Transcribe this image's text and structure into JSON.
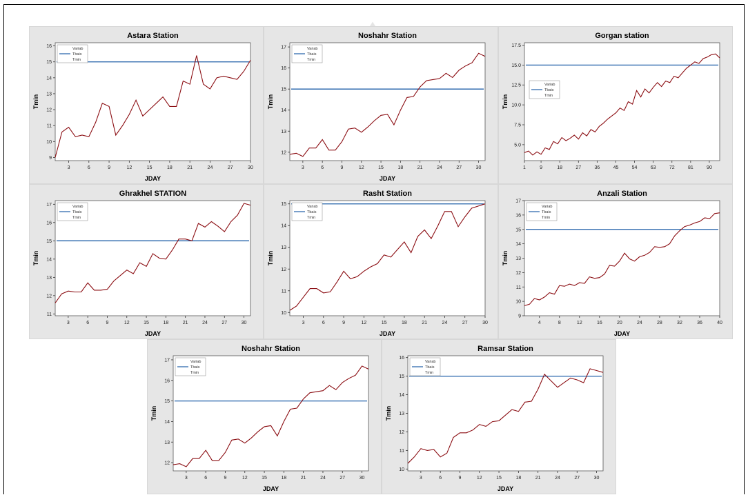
{
  "colors": {
    "series_line": "#8b0d12",
    "threshold_line": "#1f5fa8",
    "panel_bg": "#e6e6e6",
    "plot_bg": "#ffffff"
  },
  "legend": {
    "title": "Variab",
    "entries": [
      "Tbais",
      "Tmin"
    ]
  },
  "chart_data": [
    {
      "type": "line",
      "title": "Astara Station",
      "xlabel": "JDAY",
      "ylabel": "Tmin",
      "xlim": [
        1,
        30
      ],
      "ylim": [
        8.8,
        16.2
      ],
      "xticks": [
        3,
        6,
        9,
        12,
        15,
        18,
        21,
        24,
        27,
        30
      ],
      "yticks": [
        9,
        10,
        11,
        12,
        13,
        14,
        15,
        16
      ],
      "threshold": 15,
      "series": [
        {
          "name": "Tmin",
          "x": [
            1,
            2,
            3,
            4,
            5,
            6,
            7,
            8,
            9,
            10,
            11,
            12,
            13,
            14,
            15,
            16,
            17,
            18,
            19,
            20,
            21,
            22,
            23,
            24,
            25,
            26,
            27,
            28,
            29,
            30
          ],
          "values": [
            9.0,
            10.6,
            10.9,
            10.3,
            10.4,
            10.3,
            11.2,
            12.4,
            12.2,
            10.4,
            11.0,
            11.7,
            12.6,
            11.6,
            12.0,
            12.4,
            12.8,
            12.2,
            12.2,
            13.8,
            13.6,
            15.4,
            13.6,
            13.3,
            14.0,
            14.1,
            14.0,
            13.9,
            14.4,
            15.1
          ]
        }
      ]
    },
    {
      "type": "line",
      "title": "Noshahr Station",
      "xlabel": "JDAY",
      "ylabel": "Tmin",
      "xlim": [
        1,
        31
      ],
      "ylim": [
        11.6,
        17.2
      ],
      "xticks": [
        3,
        6,
        9,
        12,
        15,
        18,
        21,
        24,
        27,
        30
      ],
      "yticks": [
        12,
        13,
        14,
        15,
        16,
        17
      ],
      "threshold": 15,
      "series": [
        {
          "name": "Tmin",
          "x": [
            1,
            2,
            3,
            4,
            5,
            6,
            7,
            8,
            9,
            10,
            11,
            12,
            13,
            14,
            15,
            16,
            17,
            18,
            19,
            20,
            21,
            22,
            23,
            24,
            25,
            26,
            27,
            28,
            29,
            30,
            31
          ],
          "values": [
            11.9,
            11.95,
            11.8,
            12.2,
            12.2,
            12.6,
            12.1,
            12.1,
            12.5,
            13.1,
            13.15,
            12.95,
            13.2,
            13.5,
            13.75,
            13.8,
            13.3,
            14.0,
            14.6,
            14.65,
            15.1,
            15.4,
            15.45,
            15.5,
            15.75,
            15.55,
            15.9,
            16.1,
            16.25,
            16.7,
            16.55
          ]
        }
      ]
    },
    {
      "type": "line",
      "title": "Gorgan station",
      "xlabel": "",
      "ylabel": "Tmin",
      "xlim": [
        1,
        95
      ],
      "ylim": [
        3.0,
        17.8
      ],
      "xticks": [
        1,
        9,
        18,
        27,
        36,
        45,
        54,
        63,
        72,
        81,
        90
      ],
      "yticks": [
        5.0,
        7.5,
        10.0,
        12.5,
        15.0,
        17.5
      ],
      "threshold": 15,
      "series": [
        {
          "name": "Tmin",
          "x": [
            1,
            3,
            5,
            7,
            9,
            11,
            13,
            15,
            17,
            19,
            21,
            23,
            25,
            27,
            29,
            31,
            33,
            35,
            37,
            39,
            41,
            43,
            45,
            47,
            49,
            51,
            53,
            55,
            57,
            59,
            61,
            63,
            65,
            67,
            69,
            71,
            73,
            75,
            77,
            79,
            81,
            83,
            85,
            87,
            89,
            91,
            93,
            95
          ],
          "values": [
            4.0,
            4.2,
            3.7,
            4.1,
            3.8,
            4.6,
            4.4,
            5.4,
            5.1,
            5.9,
            5.5,
            5.8,
            6.2,
            5.7,
            6.5,
            6.1,
            6.9,
            6.6,
            7.3,
            7.7,
            8.2,
            8.6,
            9.0,
            9.6,
            9.3,
            10.4,
            10.1,
            11.8,
            11.0,
            12.0,
            11.5,
            12.2,
            12.8,
            12.3,
            13.0,
            12.8,
            13.6,
            13.4,
            14.0,
            14.6,
            15.0,
            15.4,
            15.2,
            15.8,
            16.0,
            16.3,
            16.4,
            15.9
          ]
        }
      ]
    },
    {
      "type": "line",
      "title": "Ghrakhel STATION",
      "xlabel": "JDAY",
      "ylabel": "Tmin",
      "xlim": [
        1,
        31
      ],
      "ylim": [
        10.9,
        17.2
      ],
      "xticks": [
        3,
        6,
        9,
        12,
        15,
        18,
        21,
        24,
        27,
        30
      ],
      "yticks": [
        11,
        12,
        13,
        14,
        15,
        16,
        17
      ],
      "threshold": 15,
      "series": [
        {
          "name": "Tmin",
          "x": [
            1,
            2,
            3,
            4,
            5,
            6,
            7,
            8,
            9,
            10,
            11,
            12,
            13,
            14,
            15,
            16,
            17,
            18,
            19,
            20,
            21,
            22,
            23,
            24,
            25,
            26,
            27,
            28,
            29,
            30,
            31
          ],
          "values": [
            11.6,
            12.1,
            12.25,
            12.2,
            12.2,
            12.7,
            12.3,
            12.3,
            12.35,
            12.8,
            13.1,
            13.4,
            13.2,
            13.8,
            13.6,
            14.3,
            14.05,
            14.0,
            14.5,
            15.1,
            15.1,
            15.0,
            15.95,
            15.75,
            16.05,
            15.8,
            15.5,
            16.05,
            16.4,
            17.05,
            16.95
          ]
        }
      ]
    },
    {
      "type": "line",
      "title": "Rasht Station",
      "xlabel": "JDAY",
      "ylabel": "Tmin",
      "xlim": [
        1,
        30
      ],
      "ylim": [
        9.85,
        15.15
      ],
      "xticks": [
        3,
        6,
        9,
        12,
        15,
        18,
        21,
        24,
        27,
        30
      ],
      "yticks": [
        10,
        11,
        12,
        13,
        14,
        15
      ],
      "threshold": 15,
      "series": [
        {
          "name": "Tmin",
          "x": [
            1,
            2,
            3,
            4,
            5,
            6,
            7,
            8,
            9,
            10,
            11,
            12,
            13,
            14,
            15,
            16,
            17,
            18,
            19,
            20,
            21,
            22,
            23,
            24,
            25,
            26,
            27,
            28,
            29,
            30
          ],
          "values": [
            10.1,
            10.3,
            10.7,
            11.1,
            11.1,
            10.9,
            10.95,
            11.4,
            11.9,
            11.55,
            11.65,
            11.9,
            12.1,
            12.25,
            12.65,
            12.55,
            12.9,
            13.25,
            12.75,
            13.5,
            13.8,
            13.4,
            14.0,
            14.65,
            14.65,
            13.95,
            14.4,
            14.8,
            14.9,
            15.0
          ]
        }
      ]
    },
    {
      "type": "line",
      "title": "Anzali Station",
      "xlabel": "JDAY",
      "ylabel": "Tmin",
      "xlim": [
        1,
        40
      ],
      "ylim": [
        9.0,
        17.0
      ],
      "xticks": [
        4,
        8,
        12,
        16,
        20,
        24,
        28,
        32,
        36,
        40
      ],
      "yticks": [
        9,
        10,
        11,
        12,
        13,
        14,
        15,
        16,
        17
      ],
      "threshold": 15,
      "series": [
        {
          "name": "Tmin",
          "x": [
            1,
            2,
            3,
            4,
            5,
            6,
            7,
            8,
            9,
            10,
            11,
            12,
            13,
            14,
            15,
            16,
            17,
            18,
            19,
            20,
            21,
            22,
            23,
            24,
            25,
            26,
            27,
            28,
            29,
            30,
            31,
            32,
            33,
            34,
            35,
            36,
            37,
            38,
            39,
            40
          ],
          "values": [
            9.7,
            9.8,
            10.2,
            10.1,
            10.3,
            10.6,
            10.5,
            11.1,
            11.05,
            11.2,
            11.1,
            11.3,
            11.25,
            11.7,
            11.6,
            11.65,
            11.9,
            12.5,
            12.45,
            12.8,
            13.35,
            12.95,
            12.8,
            13.1,
            13.2,
            13.4,
            13.8,
            13.75,
            13.8,
            14.0,
            14.55,
            14.9,
            15.2,
            15.3,
            15.45,
            15.55,
            15.8,
            15.75,
            16.1,
            16.15
          ]
        }
      ]
    },
    {
      "type": "line",
      "title": "Noshahr Station",
      "xlabel": "JDAY",
      "ylabel": "Tmin",
      "xlim": [
        1,
        31
      ],
      "ylim": [
        11.6,
        17.2
      ],
      "xticks": [
        3,
        6,
        9,
        12,
        15,
        18,
        21,
        24,
        27,
        30
      ],
      "yticks": [
        12,
        13,
        14,
        15,
        16,
        17
      ],
      "threshold": 15,
      "series": [
        {
          "name": "Tmin",
          "x": [
            1,
            2,
            3,
            4,
            5,
            6,
            7,
            8,
            9,
            10,
            11,
            12,
            13,
            14,
            15,
            16,
            17,
            18,
            19,
            20,
            21,
            22,
            23,
            24,
            25,
            26,
            27,
            28,
            29,
            30,
            31
          ],
          "values": [
            11.9,
            11.95,
            11.8,
            12.2,
            12.2,
            12.6,
            12.1,
            12.1,
            12.5,
            13.1,
            13.15,
            12.95,
            13.2,
            13.5,
            13.75,
            13.8,
            13.3,
            14.0,
            14.6,
            14.65,
            15.1,
            15.4,
            15.45,
            15.5,
            15.75,
            15.55,
            15.9,
            16.1,
            16.25,
            16.7,
            16.55
          ]
        }
      ]
    },
    {
      "type": "line",
      "title": "Ramsar Station",
      "xlabel": "JDAY",
      "ylabel": "Tmin",
      "xlim": [
        1,
        31
      ],
      "ylim": [
        9.9,
        16.1
      ],
      "xticks": [
        3,
        6,
        9,
        12,
        15,
        18,
        21,
        24,
        27,
        30
      ],
      "yticks": [
        10,
        11,
        12,
        13,
        14,
        15,
        16
      ],
      "threshold": 15,
      "series": [
        {
          "name": "Tmin",
          "x": [
            1,
            2,
            3,
            4,
            5,
            6,
            7,
            8,
            9,
            10,
            11,
            12,
            13,
            14,
            15,
            16,
            17,
            18,
            19,
            20,
            21,
            22,
            23,
            24,
            25,
            26,
            27,
            28,
            29,
            30,
            31
          ],
          "values": [
            10.3,
            10.65,
            11.1,
            11.0,
            11.05,
            10.65,
            10.85,
            11.7,
            11.95,
            11.95,
            12.1,
            12.4,
            12.3,
            12.55,
            12.6,
            12.9,
            13.2,
            13.1,
            13.6,
            13.65,
            14.3,
            15.1,
            14.75,
            14.4,
            14.65,
            14.9,
            14.8,
            14.65,
            15.4,
            15.3,
            15.2
          ]
        }
      ]
    }
  ]
}
